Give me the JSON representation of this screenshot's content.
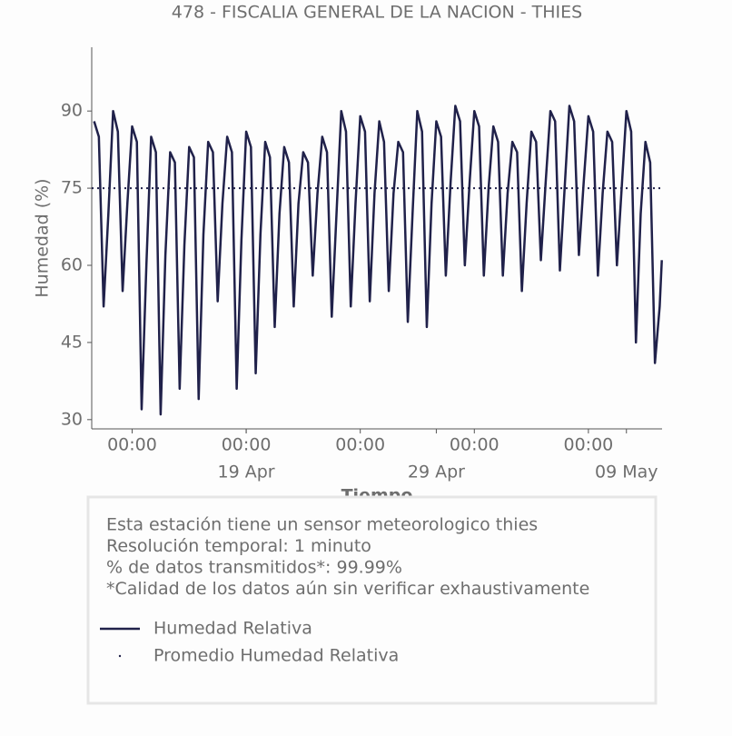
{
  "chart_data": {
    "type": "line",
    "title": "478 - FISCALIA GENERAL DE LA NACION - THIES",
    "x_label": "Tiempo",
    "y_label": "Humedad (%)",
    "x": [
      "04-11 00:00",
      "04-11 06:00",
      "04-11 12:00",
      "04-11 18:00",
      "04-12 00:00",
      "04-12 06:00",
      "04-12 12:00",
      "04-12 18:00",
      "04-13 00:00",
      "04-13 06:00",
      "04-13 12:00",
      "04-13 18:00",
      "04-14 00:00",
      "04-14 06:00",
      "04-14 12:00",
      "04-14 18:00",
      "04-15 00:00",
      "04-15 06:00",
      "04-15 12:00",
      "04-15 18:00",
      "04-16 00:00",
      "04-16 06:00",
      "04-16 12:00",
      "04-16 18:00",
      "04-17 00:00",
      "04-17 06:00",
      "04-17 12:00",
      "04-17 18:00",
      "04-18 00:00",
      "04-18 06:00",
      "04-18 12:00",
      "04-18 18:00",
      "04-19 00:00",
      "04-19 06:00",
      "04-19 12:00",
      "04-19 18:00",
      "04-20 00:00",
      "04-20 06:00",
      "04-20 12:00",
      "04-20 18:00",
      "04-21 00:00",
      "04-21 06:00",
      "04-21 12:00",
      "04-21 18:00",
      "04-22 00:00",
      "04-22 06:00",
      "04-22 12:00",
      "04-22 18:00",
      "04-23 00:00",
      "04-23 06:00",
      "04-23 12:00",
      "04-23 18:00",
      "04-24 00:00",
      "04-24 06:00",
      "04-24 12:00",
      "04-24 18:00",
      "04-25 00:00",
      "04-25 06:00",
      "04-25 12:00",
      "04-25 18:00",
      "04-26 00:00",
      "04-26 06:00",
      "04-26 12:00",
      "04-26 18:00",
      "04-27 00:00",
      "04-27 06:00",
      "04-27 12:00",
      "04-27 18:00",
      "04-28 00:00",
      "04-28 06:00",
      "04-28 12:00",
      "04-28 18:00",
      "04-29 00:00",
      "04-29 06:00",
      "04-29 12:00",
      "04-29 18:00",
      "04-30 00:00",
      "04-30 06:00",
      "04-30 12:00",
      "04-30 18:00",
      "05-01 00:00",
      "05-01 06:00",
      "05-01 12:00",
      "05-01 18:00",
      "05-02 00:00",
      "05-02 06:00",
      "05-02 12:00",
      "05-02 18:00",
      "05-03 00:00",
      "05-03 06:00",
      "05-03 12:00",
      "05-03 18:00",
      "05-04 00:00",
      "05-04 06:00",
      "05-04 12:00",
      "05-04 18:00",
      "05-05 00:00",
      "05-05 06:00",
      "05-05 12:00",
      "05-05 18:00",
      "05-06 00:00",
      "05-06 06:00",
      "05-06 12:00",
      "05-06 18:00",
      "05-07 00:00",
      "05-07 06:00",
      "05-07 12:00",
      "05-07 18:00",
      "05-08 00:00",
      "05-08 06:00",
      "05-08 12:00",
      "05-08 18:00",
      "05-09 00:00",
      "05-09 06:00",
      "05-09 12:00",
      "05-09 18:00",
      "05-10 00:00",
      "05-10 06:00",
      "05-10 12:00",
      "05-10 18:00",
      "05-10 20:40"
    ],
    "series": [
      {
        "name": "Humedad Relativa",
        "color": "#20214a",
        "style": "solid",
        "values": [
          88,
          85,
          52,
          70,
          90,
          86,
          55,
          72,
          87,
          84,
          32,
          60,
          85,
          82,
          31,
          62,
          82,
          80,
          36,
          64,
          83,
          81,
          34,
          66,
          84,
          82,
          53,
          72,
          85,
          82,
          36,
          65,
          86,
          83,
          39,
          66,
          84,
          81,
          48,
          70,
          83,
          80,
          52,
          72,
          82,
          80,
          58,
          74,
          85,
          82,
          50,
          70,
          90,
          86,
          52,
          72,
          89,
          86,
          53,
          74,
          88,
          84,
          55,
          74,
          84,
          82,
          49,
          70,
          90,
          86,
          48,
          72,
          88,
          85,
          58,
          76,
          91,
          88,
          60,
          76,
          90,
          87,
          58,
          75,
          87,
          84,
          58,
          74,
          84,
          82,
          55,
          72,
          86,
          84,
          61,
          76,
          90,
          88,
          59,
          75,
          91,
          88,
          62,
          76,
          89,
          86,
          58,
          74,
          86,
          84,
          60,
          75,
          90,
          86,
          45,
          70,
          84,
          80,
          41,
          52,
          61
        ]
      },
      {
        "name": "Promedio Humedad Relativa",
        "color": "#20214a",
        "style": "dotted",
        "value": 75
      }
    ],
    "xlim": [
      "04-10 21:00",
      "05-10 21:00"
    ],
    "ylim": [
      28.2,
      102.4
    ],
    "yticks": [
      30,
      45,
      60,
      75,
      90
    ],
    "xticks": [
      {
        "value": "04-13 00:00",
        "label": "00:00"
      },
      {
        "value": "04-19 00:00",
        "label": "00:00"
      },
      {
        "value": "04-25 00:00",
        "label": "00:00"
      },
      {
        "value": "05-01 00:00",
        "label": "00:00"
      },
      {
        "value": "05-07 00:00",
        "label": "00:00"
      }
    ],
    "xticks_date": [
      {
        "value": "04-19 00:00",
        "label": "19 Apr"
      },
      {
        "value": "04-29 00:00",
        "label": "29 Apr"
      },
      {
        "value": "05-09 00:00",
        "label": "09 May"
      }
    ],
    "info_lines": [
      "Esta estación tiene un sensor meteorologico thies",
      "Resolución temporal: 1 minuto",
      "% de datos transmitidos*: 99.99%",
      "*Calidad de los datos aún sin verificar exhaustivamente"
    ]
  }
}
